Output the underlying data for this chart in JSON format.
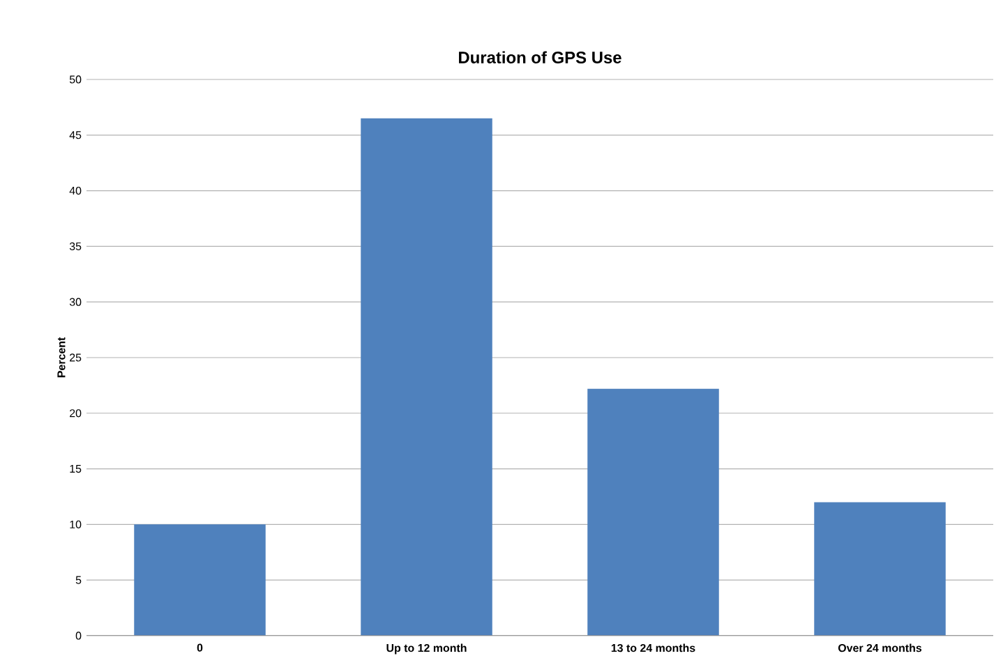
{
  "chart_data": {
    "type": "bar",
    "title": "Duration of GPS Use",
    "ylabel": "Percent",
    "categories": [
      "0",
      "Up to 12 month",
      "13 to 24 months",
      "Over 24 months"
    ],
    "values": [
      10.0,
      46.5,
      22.2,
      12.0
    ],
    "color": "#4f81bd",
    "ylim": [
      0,
      50
    ],
    "yticks": [
      0,
      5,
      10,
      15,
      20,
      25,
      30,
      35,
      40,
      45,
      50
    ],
    "grid": "y"
  }
}
